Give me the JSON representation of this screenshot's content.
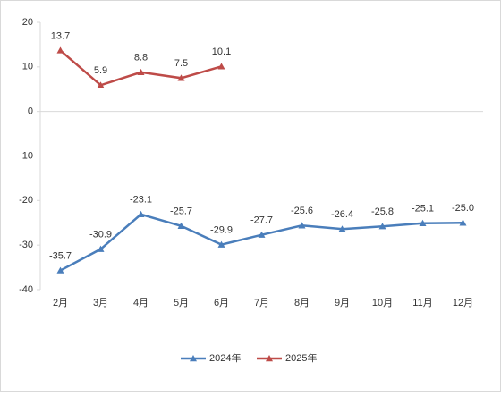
{
  "chart_data": {
    "type": "line",
    "categories": [
      "2月",
      "3月",
      "4月",
      "5月",
      "6月",
      "7月",
      "8月",
      "9月",
      "10月",
      "11月",
      "12月"
    ],
    "series": [
      {
        "name": "2024年",
        "color": "#4a7ebb",
        "values": [
          -35.7,
          -30.9,
          -23.1,
          -25.7,
          -29.9,
          -27.7,
          -25.6,
          -26.4,
          -25.8,
          -25.1,
          -25.0
        ],
        "value_labels": [
          "-35.7",
          "-30.9",
          "-23.1",
          "-25.7",
          "-29.9",
          "-27.7",
          "-25.6",
          "-26.4",
          "-25.8",
          "-25.1",
          "-25.0"
        ]
      },
      {
        "name": "2025年",
        "color": "#be4b48",
        "values": [
          13.7,
          5.9,
          8.8,
          7.5,
          10.1,
          null,
          null,
          null,
          null,
          null,
          null
        ],
        "value_labels": [
          "13.7",
          "5.9",
          "8.8",
          "7.5",
          "10.1",
          null,
          null,
          null,
          null,
          null,
          null
        ]
      }
    ],
    "ylim": [
      -40,
      20
    ],
    "yticks": [
      -40,
      -30,
      -20,
      -10,
      0,
      10,
      20
    ],
    "grid": false,
    "legend": "bottom"
  }
}
